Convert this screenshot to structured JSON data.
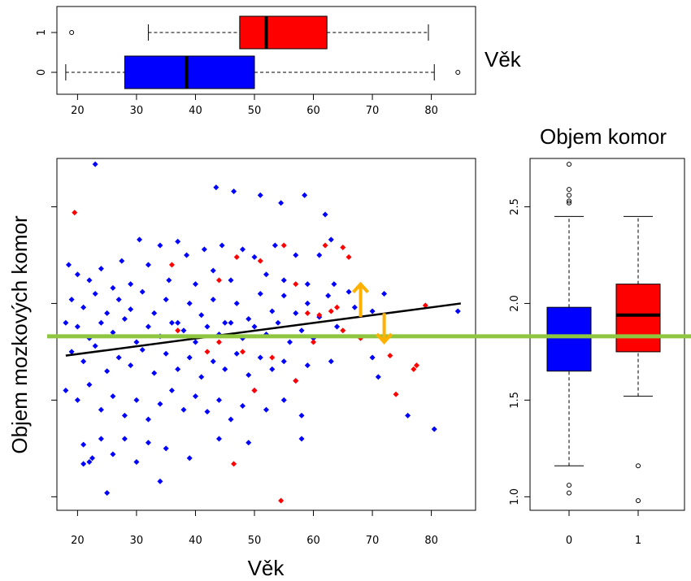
{
  "chart_data": [
    {
      "type": "boxplot",
      "orientation": "horizontal",
      "label": "Věk",
      "categories": [
        "0",
        "1"
      ],
      "x_ticks": [
        20,
        30,
        40,
        50,
        60,
        70,
        80
      ],
      "xlim": [
        16.5,
        87.5
      ],
      "boxes": [
        {
          "group": "0",
          "color": "#0000ff",
          "whisker_low": 18,
          "q1": 28,
          "median": 38.5,
          "q3": 50,
          "whisker_high": 80.5,
          "outliers": [
            84.5
          ]
        },
        {
          "group": "1",
          "color": "#ff0000",
          "whisker_low": 32,
          "q1": 47.5,
          "median": 52,
          "q3": 62.3,
          "whisker_high": 79.5,
          "outliers": [
            19
          ]
        }
      ]
    },
    {
      "type": "scatter",
      "xlabel": "Věk",
      "ylabel": "Objem mozkových komor",
      "x_ticks": [
        20,
        30,
        40,
        50,
        60,
        70,
        80
      ],
      "y_ticks": [
        1.0,
        1.5,
        2.0,
        2.5
      ],
      "xlim": [
        16.5,
        87.5
      ],
      "ylim": [
        0.93,
        2.75
      ],
      "series": [
        {
          "group": "0",
          "color": "#0000ff",
          "points": [
            [
              23,
              2.72
            ],
            [
              43.5,
              2.6
            ],
            [
              46.5,
              2.58
            ],
            [
              51,
              2.56
            ],
            [
              54.5,
              2.52
            ],
            [
              58.5,
              2.56
            ],
            [
              62,
              2.46
            ],
            [
              63,
              2.33
            ],
            [
              18.5,
              2.2
            ],
            [
              20,
              2.15
            ],
            [
              22,
              2.12
            ],
            [
              24,
              2.18
            ],
            [
              26,
              2.08
            ],
            [
              27.5,
              2.22
            ],
            [
              29,
              2.1
            ],
            [
              30.5,
              2.33
            ],
            [
              32,
              2.2
            ],
            [
              34,
              2.3
            ],
            [
              35.5,
              2.12
            ],
            [
              37,
              2.32
            ],
            [
              38.5,
              2.25
            ],
            [
              40,
              2.1
            ],
            [
              41.5,
              2.28
            ],
            [
              43,
              2.17
            ],
            [
              44.5,
              2.3
            ],
            [
              46,
              2.12
            ],
            [
              48,
              2.28
            ],
            [
              50,
              2.24
            ],
            [
              52,
              2.15
            ],
            [
              53.5,
              2.3
            ],
            [
              55,
              2.12
            ],
            [
              57,
              2.25
            ],
            [
              59,
              2.1
            ],
            [
              61,
              2.25
            ],
            [
              63.5,
              2.1
            ],
            [
              66,
              2.06
            ],
            [
              19,
              2.02
            ],
            [
              21,
              1.98
            ],
            [
              23,
              2.05
            ],
            [
              25,
              1.95
            ],
            [
              27,
              2.02
            ],
            [
              29,
              1.97
            ],
            [
              31,
              2.06
            ],
            [
              33,
              1.95
            ],
            [
              35,
              2.02
            ],
            [
              37,
              1.9
            ],
            [
              39,
              2.0
            ],
            [
              41,
              1.94
            ],
            [
              43,
              2.02
            ],
            [
              45,
              1.9
            ],
            [
              47,
              2.0
            ],
            [
              49,
              1.92
            ],
            [
              51,
              2.05
            ],
            [
              53,
              1.96
            ],
            [
              55,
              2.04
            ],
            [
              57,
              1.95
            ],
            [
              59,
              2.0
            ],
            [
              61,
              1.93
            ],
            [
              62.5,
              2.04
            ],
            [
              67,
              1.98
            ],
            [
              70,
              1.96
            ],
            [
              72,
              2.05
            ],
            [
              84.5,
              1.96
            ],
            [
              18,
              1.9
            ],
            [
              20,
              1.88
            ],
            [
              22,
              1.82
            ],
            [
              24,
              1.9
            ],
            [
              26,
              1.85
            ],
            [
              28,
              1.92
            ],
            [
              30,
              1.8
            ],
            [
              32,
              1.88
            ],
            [
              34,
              1.83
            ],
            [
              36,
              1.9
            ],
            [
              38,
              1.86
            ],
            [
              40,
              1.8
            ],
            [
              42,
              1.88
            ],
            [
              44,
              1.84
            ],
            [
              46,
              1.9
            ],
            [
              48,
              1.82
            ],
            [
              50,
              1.88
            ],
            [
              52,
              1.84
            ],
            [
              54,
              1.9
            ],
            [
              56,
              1.8
            ],
            [
              58,
              1.86
            ],
            [
              60,
              1.82
            ],
            [
              64,
              1.88
            ],
            [
              19,
              1.75
            ],
            [
              21,
              1.7
            ],
            [
              23,
              1.78
            ],
            [
              25,
              1.65
            ],
            [
              27,
              1.72
            ],
            [
              29,
              1.68
            ],
            [
              31,
              1.76
            ],
            [
              33,
              1.64
            ],
            [
              35,
              1.74
            ],
            [
              37,
              1.66
            ],
            [
              39,
              1.72
            ],
            [
              41,
              1.62
            ],
            [
              43,
              1.7
            ],
            [
              45,
              1.66
            ],
            [
              47,
              1.74
            ],
            [
              49,
              1.63
            ],
            [
              51,
              1.72
            ],
            [
              53,
              1.66
            ],
            [
              55,
              1.7
            ],
            [
              57,
              1.6
            ],
            [
              59,
              1.68
            ],
            [
              63,
              1.7
            ],
            [
              70,
              1.72
            ],
            [
              71,
              1.62
            ],
            [
              18,
              1.55
            ],
            [
              20,
              1.5
            ],
            [
              22,
              1.58
            ],
            [
              24,
              1.45
            ],
            [
              26,
              1.52
            ],
            [
              28,
              1.42
            ],
            [
              30,
              1.5
            ],
            [
              32,
              1.4
            ],
            [
              34,
              1.48
            ],
            [
              36,
              1.55
            ],
            [
              38,
              1.45
            ],
            [
              40,
              1.52
            ],
            [
              42,
              1.44
            ],
            [
              44,
              1.5
            ],
            [
              46,
              1.4
            ],
            [
              48,
              1.47
            ],
            [
              50,
              1.55
            ],
            [
              52,
              1.45
            ],
            [
              55,
              1.5
            ],
            [
              58,
              1.42
            ],
            [
              76,
              1.42
            ],
            [
              21,
              1.27
            ],
            [
              22.5,
              1.2
            ],
            [
              24,
              1.3
            ],
            [
              26,
              1.22
            ],
            [
              28,
              1.3
            ],
            [
              30,
              1.18
            ],
            [
              32,
              1.28
            ],
            [
              35,
              1.25
            ],
            [
              39,
              1.2
            ],
            [
              44,
              1.3
            ],
            [
              49,
              1.28
            ],
            [
              58,
              1.3
            ],
            [
              80.5,
              1.35
            ],
            [
              21,
              1.17
            ],
            [
              22,
              1.18
            ],
            [
              25,
              1.02
            ],
            [
              34,
              1.08
            ]
          ]
        },
        {
          "group": "1",
          "color": "#ff0000",
          "points": [
            [
              19.5,
              2.47
            ],
            [
              65,
              2.29
            ],
            [
              62,
              2.3
            ],
            [
              66,
              2.24
            ],
            [
              55,
              2.3
            ],
            [
              51,
              2.22
            ],
            [
              47,
              2.24
            ],
            [
              44,
              2.12
            ],
            [
              36,
              2.2
            ],
            [
              57,
              2.1
            ],
            [
              59,
              1.95
            ],
            [
              61,
              1.94
            ],
            [
              63,
              1.96
            ],
            [
              64,
              1.98
            ],
            [
              79,
              1.99
            ],
            [
              65,
              1.86
            ],
            [
              68,
              1.82
            ],
            [
              73,
              1.73
            ],
            [
              77,
              1.66
            ],
            [
              77.5,
              1.68
            ],
            [
              60,
              1.8
            ],
            [
              53,
              1.72
            ],
            [
              48,
              1.75
            ],
            [
              42,
              1.75
            ],
            [
              37,
              1.86
            ],
            [
              50,
              1.55
            ],
            [
              57,
              1.6
            ],
            [
              46.5,
              1.17
            ],
            [
              54.5,
              0.98
            ],
            [
              74,
              1.53
            ],
            [
              44,
              1.8
            ]
          ]
        }
      ],
      "regression_line": {
        "x": [
          18,
          85
        ],
        "y": [
          1.73,
          2.0
        ],
        "color": "#000000"
      },
      "reference_line": {
        "y": 1.83,
        "color": "#8ec63f"
      },
      "arrows": [
        {
          "x": 68,
          "y_from": 1.93,
          "y_to": 2.1,
          "color": "#ffb000"
        },
        {
          "x": 72,
          "y_from": 1.95,
          "y_to": 1.8,
          "color": "#ffb000"
        }
      ]
    },
    {
      "type": "boxplot",
      "orientation": "vertical",
      "title": "Objem komor",
      "categories": [
        "0",
        "1"
      ],
      "y_ticks": [
        1.0,
        1.5,
        2.0,
        2.5
      ],
      "ylim": [
        0.93,
        2.75
      ],
      "boxes": [
        {
          "group": "0",
          "color": "#0000ff",
          "whisker_low": 1.16,
          "q1": 1.65,
          "median": 1.83,
          "q3": 1.98,
          "whisker_high": 2.45,
          "outliers": [
            2.72,
            2.59,
            2.56,
            2.53,
            2.52,
            1.06,
            1.02
          ]
        },
        {
          "group": "1",
          "color": "#ff0000",
          "whisker_low": 1.52,
          "q1": 1.75,
          "median": 1.94,
          "q3": 2.1,
          "whisker_high": 2.45,
          "outliers": [
            1.16,
            0.98
          ]
        }
      ]
    }
  ]
}
